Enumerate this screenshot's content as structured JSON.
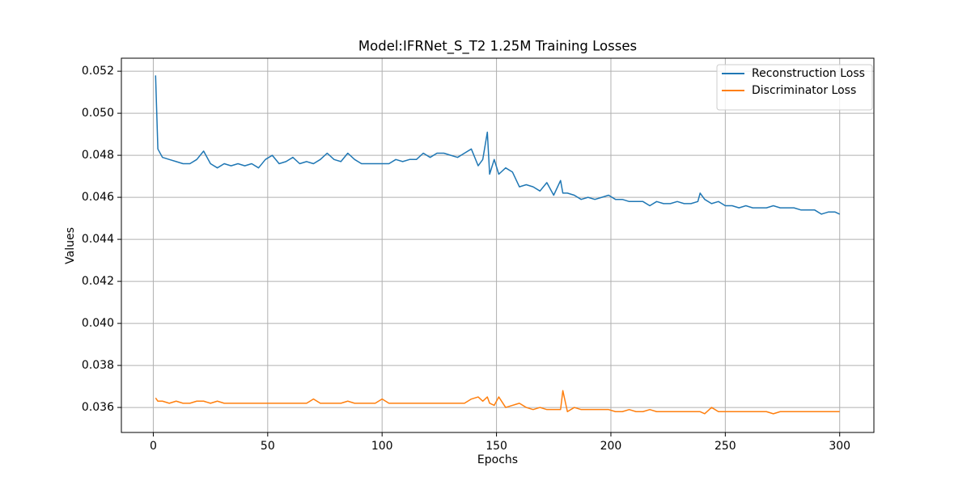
{
  "chart_data": {
    "type": "line",
    "title": "Model:IFRNet_S_T2 1.25M Training Losses",
    "xlabel": "Epochs",
    "ylabel": "Values",
    "x": [
      1,
      2,
      4,
      7,
      10,
      13,
      16,
      19,
      22,
      25,
      28,
      31,
      34,
      37,
      40,
      43,
      46,
      49,
      52,
      55,
      58,
      61,
      64,
      67,
      70,
      73,
      76,
      79,
      82,
      85,
      88,
      91,
      94,
      97,
      100,
      103,
      106,
      109,
      112,
      115,
      118,
      121,
      124,
      127,
      130,
      133,
      136,
      139,
      142,
      144,
      146,
      147,
      149,
      151,
      154,
      157,
      160,
      163,
      166,
      169,
      172,
      175,
      178,
      179,
      181,
      184,
      187,
      190,
      193,
      196,
      199,
      202,
      205,
      208,
      211,
      214,
      217,
      220,
      223,
      226,
      229,
      232,
      235,
      238,
      239,
      241,
      244,
      247,
      250,
      253,
      256,
      259,
      262,
      265,
      268,
      271,
      274,
      277,
      280,
      283,
      286,
      289,
      292,
      295,
      298,
      300
    ],
    "series": [
      {
        "name": "Reconstruction Loss",
        "color": "#1f77b4",
        "values": [
          0.0518,
          0.0483,
          0.0479,
          0.0478,
          0.0477,
          0.0476,
          0.0476,
          0.0478,
          0.0482,
          0.0476,
          0.0474,
          0.0476,
          0.0475,
          0.0476,
          0.0475,
          0.0476,
          0.0474,
          0.0478,
          0.048,
          0.0476,
          0.0477,
          0.0479,
          0.0476,
          0.0477,
          0.0476,
          0.0478,
          0.0481,
          0.0478,
          0.0477,
          0.0481,
          0.0478,
          0.0476,
          0.0476,
          0.0476,
          0.0476,
          0.0476,
          0.0478,
          0.0477,
          0.0478,
          0.0478,
          0.0481,
          0.0479,
          0.0481,
          0.0481,
          0.048,
          0.0479,
          0.0481,
          0.0483,
          0.0475,
          0.0478,
          0.0491,
          0.0471,
          0.0478,
          0.0471,
          0.0474,
          0.0472,
          0.0465,
          0.0466,
          0.0465,
          0.0463,
          0.0467,
          0.0461,
          0.0468,
          0.0462,
          0.0462,
          0.0461,
          0.0459,
          0.046,
          0.0459,
          0.046,
          0.0461,
          0.0459,
          0.0459,
          0.0458,
          0.0458,
          0.0458,
          0.0456,
          0.0458,
          0.0457,
          0.0457,
          0.0458,
          0.0457,
          0.0457,
          0.0458,
          0.0462,
          0.0459,
          0.0457,
          0.0458,
          0.0456,
          0.0456,
          0.0455,
          0.0456,
          0.0455,
          0.0455,
          0.0455,
          0.0456,
          0.0455,
          0.0455,
          0.0455,
          0.0454,
          0.0454,
          0.0454,
          0.0452,
          0.0453,
          0.0453,
          0.0452
        ]
      },
      {
        "name": "Discriminator Loss",
        "color": "#ff7f0e",
        "values": [
          0.03645,
          0.0363,
          0.0363,
          0.0362,
          0.0363,
          0.0362,
          0.0362,
          0.0363,
          0.0363,
          0.0362,
          0.0363,
          0.0362,
          0.0362,
          0.0362,
          0.0362,
          0.0362,
          0.0362,
          0.0362,
          0.0362,
          0.0362,
          0.0362,
          0.0362,
          0.0362,
          0.0362,
          0.0364,
          0.0362,
          0.0362,
          0.0362,
          0.0362,
          0.0363,
          0.0362,
          0.0362,
          0.0362,
          0.0362,
          0.0364,
          0.0362,
          0.0362,
          0.0362,
          0.0362,
          0.0362,
          0.0362,
          0.0362,
          0.0362,
          0.0362,
          0.0362,
          0.0362,
          0.0362,
          0.0364,
          0.0365,
          0.0363,
          0.0365,
          0.0362,
          0.0361,
          0.0365,
          0.036,
          0.0361,
          0.0362,
          0.036,
          0.0359,
          0.036,
          0.0359,
          0.0359,
          0.0359,
          0.0368,
          0.0358,
          0.036,
          0.0359,
          0.0359,
          0.0359,
          0.0359,
          0.0359,
          0.0358,
          0.0358,
          0.0359,
          0.0358,
          0.0358,
          0.0359,
          0.0358,
          0.0358,
          0.0358,
          0.0358,
          0.0358,
          0.0358,
          0.0358,
          0.0358,
          0.0357,
          0.036,
          0.0358,
          0.0358,
          0.0358,
          0.0358,
          0.0358,
          0.0358,
          0.0358,
          0.0358,
          0.0357,
          0.0358,
          0.0358,
          0.0358,
          0.0358,
          0.0358,
          0.0358,
          0.0358,
          0.0358,
          0.0358,
          0.0358
        ]
      }
    ],
    "xlim": [
      -13.95,
      314.95
    ],
    "xticks": [
      0,
      50,
      100,
      150,
      200,
      250,
      300
    ],
    "ylim": [
      0.03481,
      0.05262
    ],
    "yticks": [
      0.036,
      0.038,
      {
        "value": 0.04,
        "label": "0.040"
      },
      0.042,
      0.044,
      0.046,
      0.048,
      {
        "value": 0.05,
        "label": "0.050"
      },
      0.052
    ],
    "grid": true,
    "legend": "upper right"
  }
}
